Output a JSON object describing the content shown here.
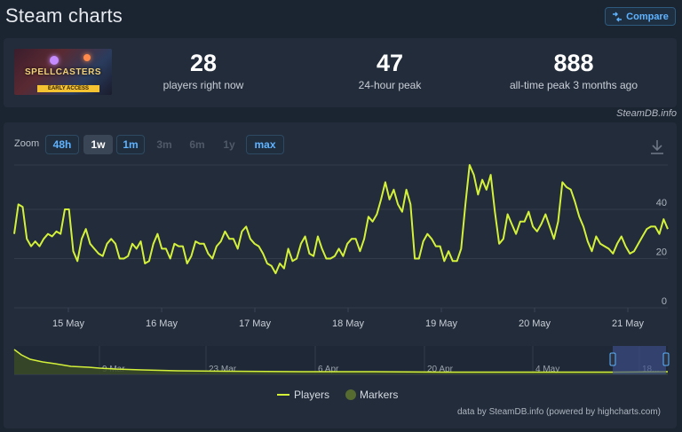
{
  "header": {
    "title": "Steam charts",
    "compare_label": "Compare"
  },
  "game": {
    "cover_title": "SPELLCASTERS",
    "cover_badge": "EARLY ACCESS"
  },
  "stats": [
    {
      "value": "28",
      "label": "players right now"
    },
    {
      "value": "47",
      "label": "24-hour peak"
    },
    {
      "value": "888",
      "label": "all-time peak 3 months ago"
    }
  ],
  "watermark": "SteamDB.info",
  "zoom": {
    "label": "Zoom",
    "options": [
      {
        "label": "48h",
        "state": "available"
      },
      {
        "label": "1w",
        "state": "selected"
      },
      {
        "label": "1m",
        "state": "available"
      },
      {
        "label": "3m",
        "state": "disabled"
      },
      {
        "label": "6m",
        "state": "disabled"
      },
      {
        "label": "1y",
        "state": "disabled"
      },
      {
        "label": "max",
        "state": "available"
      }
    ]
  },
  "legend": {
    "players": "Players",
    "markers": "Markers"
  },
  "credit": "data by SteamDB.info (powered by highcharts.com)",
  "colors": {
    "line": "#d4f13a",
    "markers": "#556b2f",
    "bg": "#222c3b",
    "accent": "#5fb3ff"
  },
  "chart_data": {
    "type": "line",
    "series": [
      {
        "name": "Players",
        "x_start": "2024-05-14T19:00",
        "step_hours": 1,
        "values": [
          30,
          42,
          41,
          28,
          25,
          27,
          25,
          28,
          30,
          29,
          31,
          30,
          40,
          40,
          23,
          19,
          28,
          32,
          26,
          24,
          22,
          21,
          26,
          28,
          26,
          20,
          20,
          21,
          26,
          24,
          27,
          18,
          19,
          26,
          30,
          24,
          24,
          20,
          26,
          25,
          25,
          18,
          21,
          27,
          26,
          26,
          22,
          20,
          25,
          27,
          31,
          28,
          28,
          24,
          31,
          33,
          28,
          26,
          25,
          22,
          18,
          17,
          14,
          18,
          16,
          24,
          19,
          20,
          26,
          29,
          22,
          21,
          29,
          24,
          20,
          20,
          21,
          24,
          21,
          26,
          28,
          28,
          23,
          28,
          37,
          35,
          38,
          44,
          51,
          44,
          48,
          42,
          39,
          48,
          42,
          20,
          20,
          27,
          30,
          28,
          25,
          25,
          19,
          23,
          19,
          19,
          24,
          42,
          58,
          54,
          46,
          52,
          48,
          54,
          39,
          26,
          28,
          38,
          34,
          30,
          35,
          35,
          39,
          33,
          31,
          34,
          38,
          33,
          28,
          35,
          51,
          49,
          48,
          43,
          37,
          33,
          27,
          23,
          29,
          26,
          25,
          24,
          22,
          26,
          29,
          25,
          22,
          23,
          26,
          29,
          32,
          33,
          33,
          30,
          36,
          32
        ]
      }
    ],
    "x_tick_labels": [
      "15 May",
      "16 May",
      "17 May",
      "18 May",
      "19 May",
      "20 May",
      "21 May"
    ],
    "y_ticks": [
      0,
      20,
      40
    ],
    "ylim": [
      0,
      58
    ],
    "navigator": {
      "x_tick_labels": [
        "9 Mar",
        "23 Mar",
        "6 Apr",
        "20 Apr",
        "4 May",
        "18..."
      ]
    },
    "grid": true,
    "legend_position": "bottom-center"
  }
}
